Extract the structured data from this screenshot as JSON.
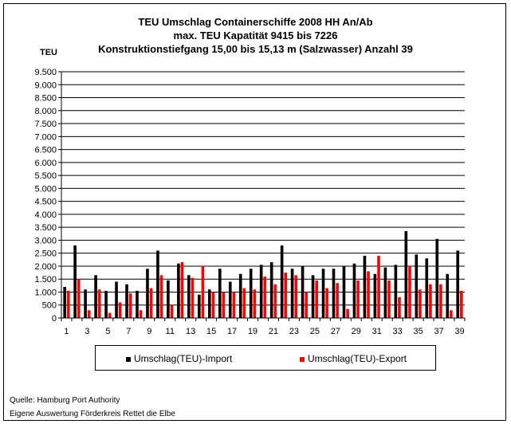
{
  "chart_data": {
    "type": "bar",
    "title": "TEU Umschlag Containerschiffe 2008 HH An/Ab",
    "subtitle1": "max. TEU Kapatität 9415 bis 7226",
    "subtitle2": "Konstruktionstiefgang 15,00 bis 15,13 m (Salzwasser) Anzahl 39",
    "ylabel": "TEU",
    "xlabel": "",
    "ylim": [
      0,
      9500
    ],
    "yticks": [
      0,
      500,
      1000,
      1500,
      2000,
      2500,
      3000,
      3500,
      4000,
      4500,
      5000,
      5500,
      6000,
      6500,
      7000,
      7500,
      8000,
      8500,
      9000,
      9500
    ],
    "ytick_labels": [
      "0",
      "500",
      "1.000",
      "1.500",
      "2.000",
      "2.500",
      "3.000",
      "3.500",
      "4.000",
      "4.500",
      "5.000",
      "5.500",
      "6.000",
      "6.500",
      "7.000",
      "7.500",
      "8.000",
      "8.500",
      "9.000",
      "9.500"
    ],
    "categories": [
      1,
      2,
      3,
      4,
      5,
      6,
      7,
      8,
      9,
      10,
      11,
      12,
      13,
      14,
      15,
      16,
      17,
      18,
      19,
      20,
      21,
      22,
      23,
      24,
      25,
      26,
      27,
      28,
      29,
      30,
      31,
      32,
      33,
      34,
      35,
      36,
      37,
      38,
      39
    ],
    "xtick_labels": [
      "1",
      "3",
      "5",
      "7",
      "9",
      "11",
      "13",
      "15",
      "17",
      "19",
      "21",
      "23",
      "25",
      "27",
      "29",
      "31",
      "33",
      "35",
      "37",
      "39"
    ],
    "grid": true,
    "legend_position": "bottom",
    "series": [
      {
        "name": "Umschlag(TEU)-Import",
        "color": "#000000",
        "values": [
          1200,
          2800,
          1100,
          1650,
          1050,
          1400,
          1300,
          1050,
          1900,
          2600,
          1450,
          2100,
          1650,
          900,
          1100,
          1900,
          1400,
          1700,
          1900,
          2050,
          2150,
          2800,
          1900,
          2000,
          1650,
          1900,
          1900,
          2000,
          2100,
          2400,
          1700,
          1950,
          2050,
          3350,
          2450,
          2300,
          3050,
          1700,
          2600
        ]
      },
      {
        "name": "Umschlag(TEU)-Export",
        "color": "#ff0000",
        "values": [
          1050,
          1500,
          300,
          1100,
          200,
          600,
          950,
          300,
          1150,
          1650,
          500,
          2150,
          1550,
          2000,
          1000,
          1000,
          1000,
          1150,
          1100,
          1600,
          1300,
          1750,
          1650,
          1000,
          1450,
          1150,
          1350,
          350,
          1450,
          1800,
          2400,
          1450,
          800,
          2000,
          1100,
          1300,
          1300,
          300,
          1050
        ]
      }
    ]
  },
  "footer": {
    "line1": "Quelle: Hamburg Port Authority",
    "line2": "Eigene Auswertung Förderkreis Rettet die Elbe"
  }
}
